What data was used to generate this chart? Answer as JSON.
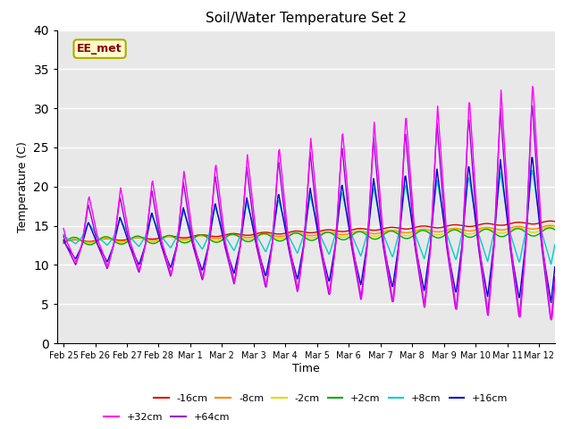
{
  "title": "Soil/Water Temperature Set 2",
  "xlabel": "Time",
  "ylabel": "Temperature (C)",
  "ylim": [
    0,
    40
  ],
  "yticks": [
    0,
    5,
    10,
    15,
    20,
    25,
    30,
    35,
    40
  ],
  "background_color": "#e8e8e8",
  "annotation_text": "EE_met",
  "annotation_bg": "#ffffcc",
  "annotation_border": "#aaaa00",
  "annotation_text_color": "#880000",
  "series": {
    "-16cm": {
      "color": "#dd0000",
      "lw": 1.5
    },
    "-8cm": {
      "color": "#ff8800",
      "lw": 1.5
    },
    "-2cm": {
      "color": "#dddd00",
      "lw": 1.5
    },
    "+2cm": {
      "color": "#00aa00",
      "lw": 1.5
    },
    "+8cm": {
      "color": "#00cccc",
      "lw": 1.5
    },
    "+16cm": {
      "color": "#0000cc",
      "lw": 1.5
    },
    "+32cm": {
      "color": "#ff00ff",
      "lw": 1.5
    },
    "+64cm": {
      "color": "#9900cc",
      "lw": 1.5
    }
  },
  "x_tick_labels": [
    "Feb 25",
    "Feb 26",
    "Feb 27",
    "Feb 28",
    "Mar 1",
    "Mar 2",
    "Mar 3",
    "Mar 4",
    "Mar 5",
    "Mar 6",
    "Mar 7",
    "Mar 8",
    "Mar 9",
    "Mar 10",
    "Mar 11",
    "Mar 12"
  ],
  "legend_row1": [
    "-16cm",
    "-8cm",
    "-2cm",
    "+2cm",
    "+8cm",
    "+16cm"
  ],
  "legend_row2": [
    "+32cm",
    "+64cm"
  ]
}
